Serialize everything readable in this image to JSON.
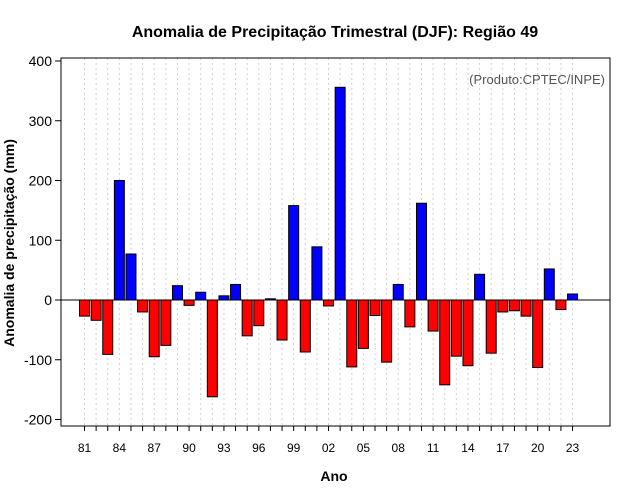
{
  "chart_data": {
    "type": "bar",
    "title": "Anomalia de Precipitação Trimestral (DJF): Região 49",
    "xlabel": "Ano",
    "ylabel": "Anomalia de precipitação (mm)",
    "credit": "(Produto:CPTEC/INPE)",
    "ylim": [
      -210,
      410
    ],
    "yticks": [
      -200,
      -100,
      0,
      100,
      200,
      300,
      400
    ],
    "xtick_labels": [
      "81",
      "84",
      "87",
      "90",
      "93",
      "96",
      "99",
      "02",
      "05",
      "08",
      "11",
      "14",
      "17",
      "20",
      "23"
    ],
    "grid": "vertical dotted",
    "positive_color": "#0000ff",
    "negative_color": "#ff0000",
    "years": [
      1981,
      1982,
      1983,
      1984,
      1985,
      1986,
      1987,
      1988,
      1989,
      1990,
      1991,
      1992,
      1993,
      1994,
      1995,
      1996,
      1997,
      1998,
      1999,
      2000,
      2001,
      2002,
      2003,
      2004,
      2005,
      2006,
      2007,
      2008,
      2009,
      2010,
      2011,
      2012,
      2013,
      2014,
      2015,
      2016,
      2017,
      2018,
      2019,
      2020,
      2021,
      2022,
      2023
    ],
    "values": [
      -27,
      -34,
      -91,
      200,
      77,
      -20,
      -95,
      -76,
      24,
      -9,
      13,
      -162,
      7,
      26,
      -60,
      -43,
      2,
      -67,
      158,
      -87,
      89,
      -10,
      356,
      -112,
      -81,
      -26,
      -104,
      26,
      -45,
      162,
      -52,
      -142,
      -94,
      -110,
      43,
      -89,
      -20,
      -18,
      -27,
      -113,
      52,
      -16,
      10
    ]
  }
}
